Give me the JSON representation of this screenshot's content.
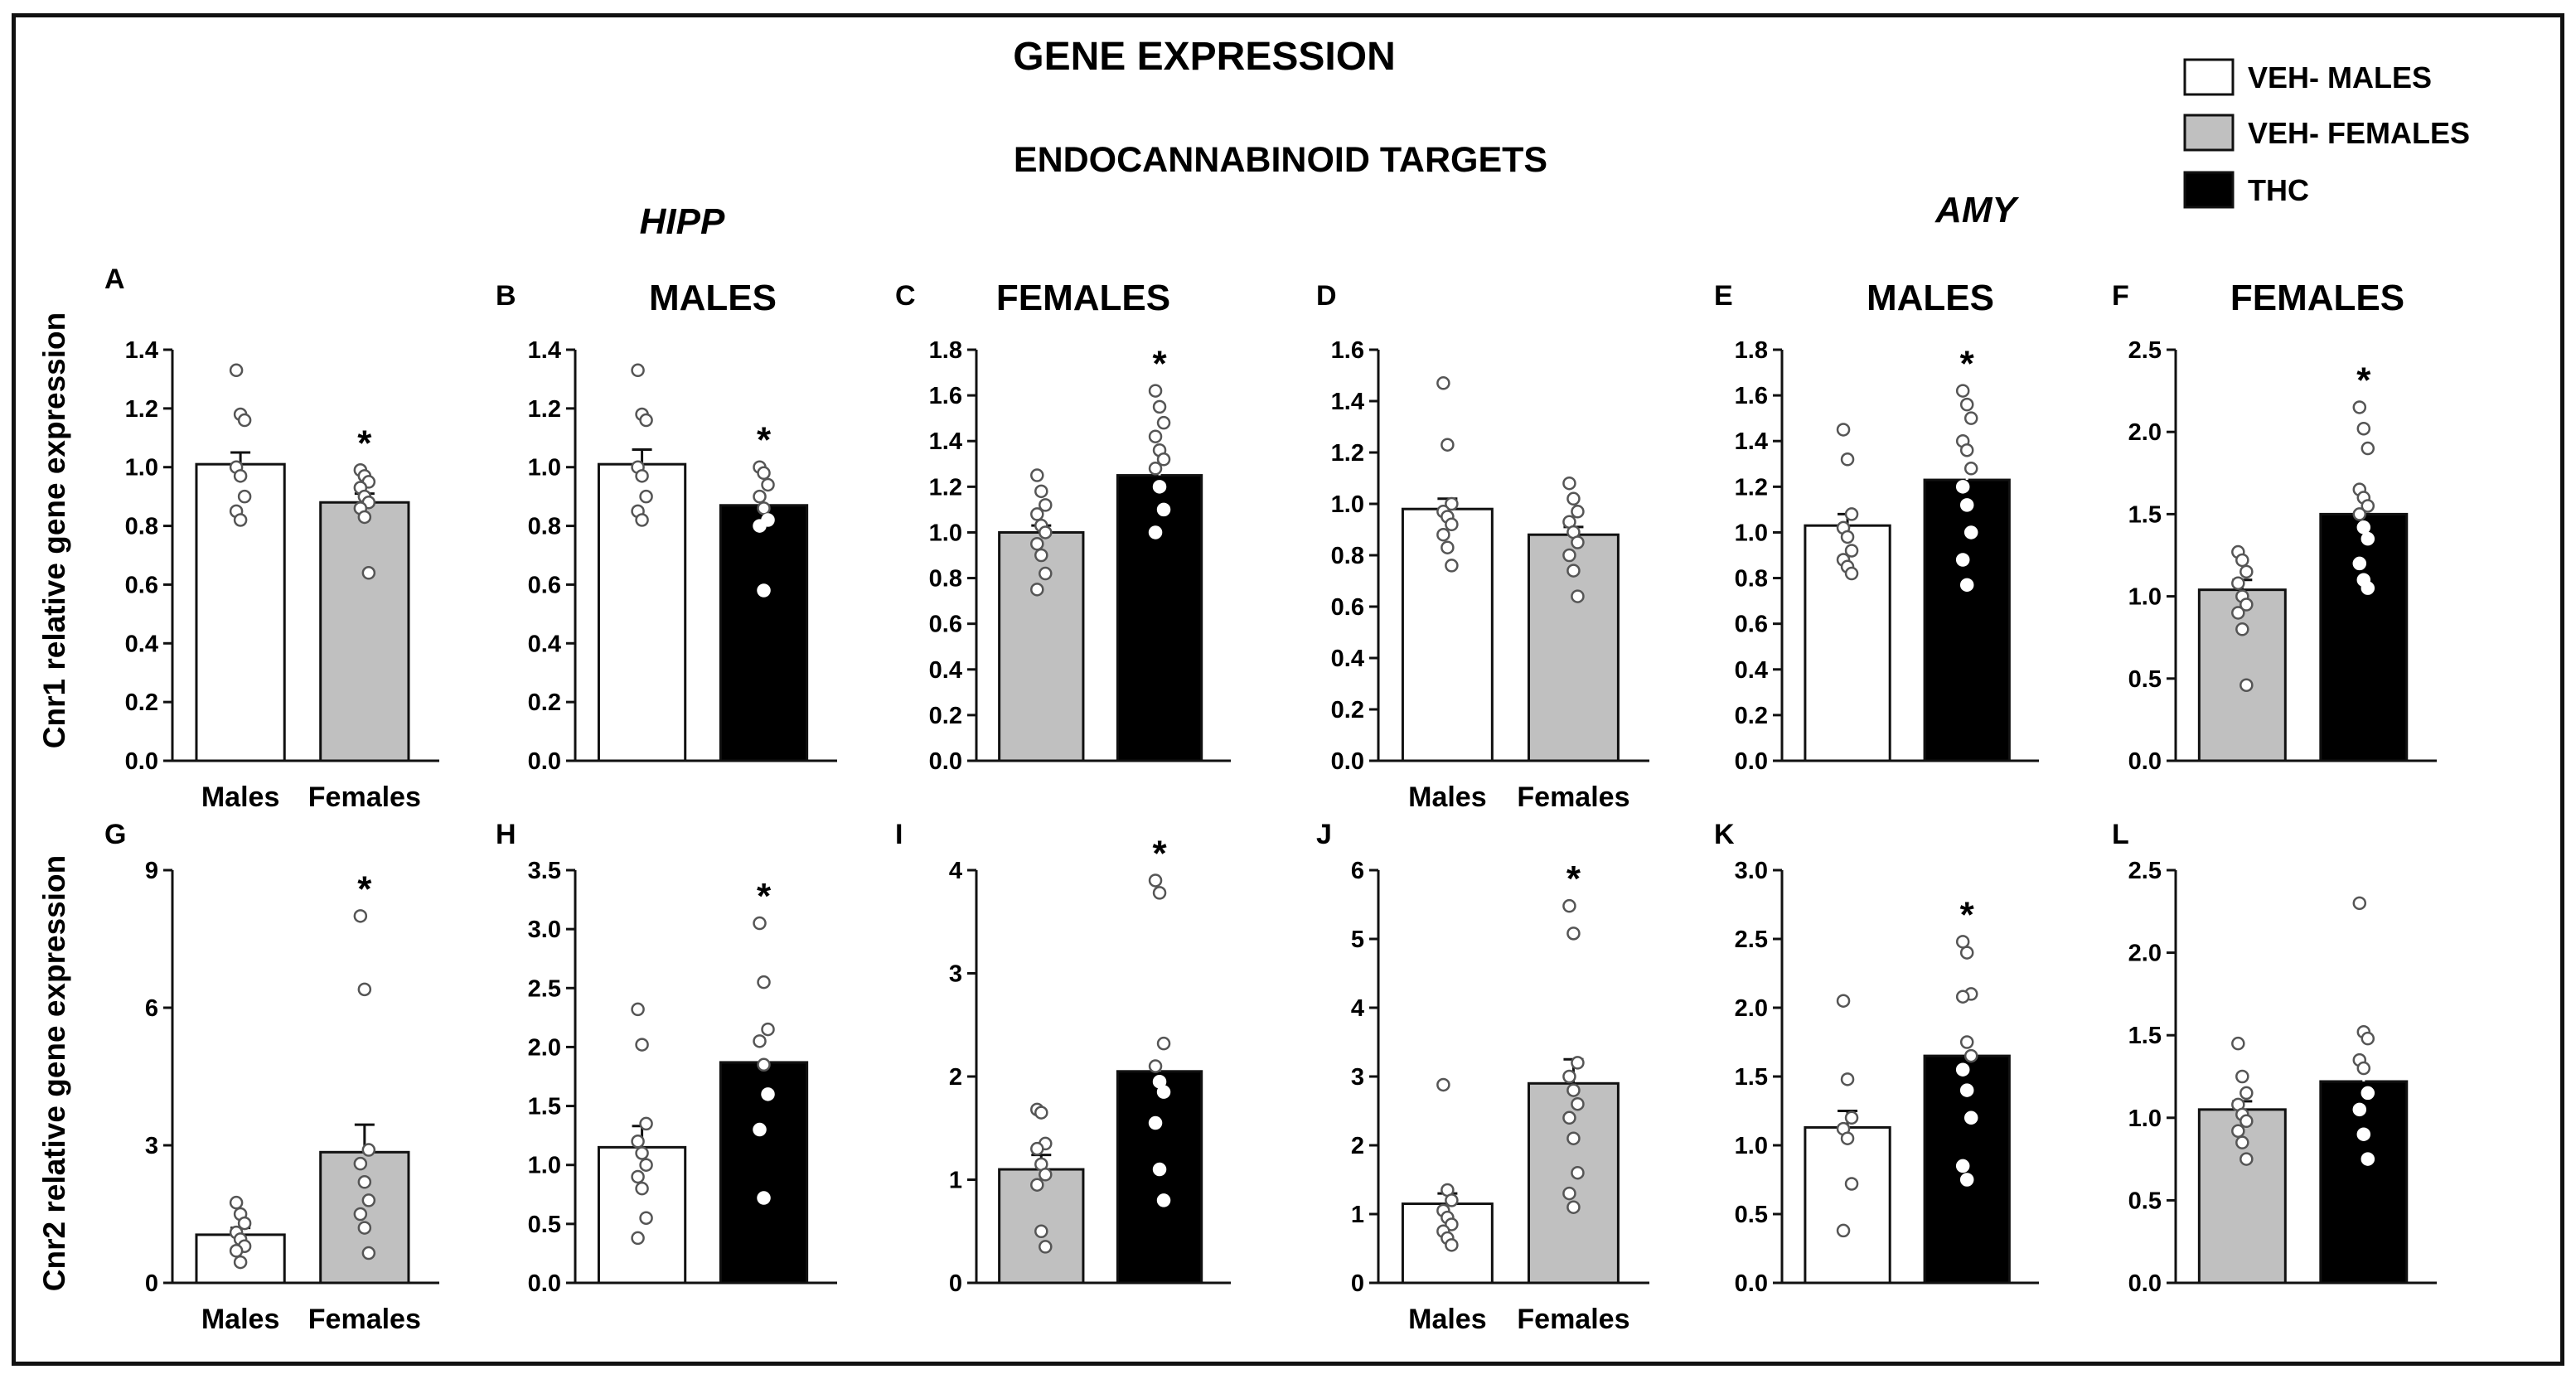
{
  "header": {
    "title": "GENE EXPRESSION",
    "subtitle": "ENDOCANNABINOID TARGETS",
    "region_hipp": "HIPP",
    "region_amy": "AMY"
  },
  "legend": [
    {
      "label": "VEH- MALES",
      "color": "#ffffff"
    },
    {
      "label": "VEH- FEMALES",
      "color": "#c0c0c0"
    },
    {
      "label": "THC",
      "color": "#000000"
    }
  ],
  "row_labels": [
    "Cnr1 relative gene expression",
    "Cnr2 relative gene expression"
  ],
  "colors": {
    "veh_males": "#ffffff",
    "veh_females": "#c0c0c0",
    "thc": "#000000",
    "ink": "#111111"
  },
  "chart_data": [
    {
      "panel": "A",
      "type": "bar",
      "region": "HIPP",
      "gene": "Cnr1",
      "header": "",
      "categories": [
        "Males",
        "Females"
      ],
      "series": [
        {
          "name": "VEH- MALES",
          "value": 1.01,
          "sem": 0.04,
          "points": [
            1.33,
            1.18,
            1.16,
            1.0,
            0.97,
            0.9,
            0.85,
            0.82
          ],
          "star": false
        },
        {
          "name": "VEH- FEMALES",
          "value": 0.88,
          "sem": 0.03,
          "points": [
            0.99,
            0.97,
            0.95,
            0.93,
            0.9,
            0.88,
            0.86,
            0.83,
            0.64
          ],
          "star": true
        }
      ],
      "ylim": [
        0,
        1.4
      ],
      "yticks": [
        "0.0",
        "0.2",
        "0.4",
        "0.6",
        "0.8",
        "1.0",
        "1.2",
        "1.4"
      ]
    },
    {
      "panel": "B",
      "type": "bar",
      "region": "HIPP",
      "gene": "Cnr1",
      "header": "MALES",
      "categories": [],
      "series": [
        {
          "name": "VEH- MALES",
          "value": 1.01,
          "sem": 0.05,
          "points": [
            1.33,
            1.18,
            1.16,
            1.0,
            0.97,
            0.9,
            0.85,
            0.82
          ],
          "star": false
        },
        {
          "name": "THC",
          "value": 0.87,
          "sem": 0.04,
          "points": [
            1.0,
            0.98,
            0.94,
            0.9,
            0.86,
            0.82,
            0.8,
            0.58
          ],
          "star": true
        }
      ],
      "ylim": [
        0,
        1.4
      ],
      "yticks": [
        "0.0",
        "0.2",
        "0.4",
        "0.6",
        "0.8",
        "1.0",
        "1.2",
        "1.4"
      ]
    },
    {
      "panel": "C",
      "type": "bar",
      "region": "HIPP",
      "gene": "Cnr1",
      "header": "FEMALES",
      "categories": [],
      "series": [
        {
          "name": "VEH- FEMALES",
          "value": 1.0,
          "sem": 0.03,
          "points": [
            1.25,
            1.18,
            1.12,
            1.08,
            1.03,
            1.0,
            0.95,
            0.9,
            0.82,
            0.75
          ],
          "star": false
        },
        {
          "name": "THC",
          "value": 1.25,
          "sem": 0.05,
          "points": [
            1.62,
            1.55,
            1.48,
            1.42,
            1.36,
            1.32,
            1.28,
            1.2,
            1.1,
            1.0
          ],
          "star": true
        }
      ],
      "ylim": [
        0,
        1.8
      ],
      "yticks": [
        "0.0",
        "0.2",
        "0.4",
        "0.6",
        "0.8",
        "1.0",
        "1.2",
        "1.4",
        "1.6",
        "1.8"
      ]
    },
    {
      "panel": "D",
      "type": "bar",
      "region": "AMY",
      "gene": "Cnr1",
      "header": "",
      "categories": [
        "Males",
        "Females"
      ],
      "series": [
        {
          "name": "VEH- MALES",
          "value": 0.98,
          "sem": 0.04,
          "points": [
            1.47,
            1.23,
            1.0,
            0.97,
            0.95,
            0.92,
            0.88,
            0.83,
            0.76
          ],
          "star": false
        },
        {
          "name": "VEH- FEMALES",
          "value": 0.88,
          "sem": 0.03,
          "points": [
            1.08,
            1.02,
            0.97,
            0.93,
            0.89,
            0.85,
            0.8,
            0.74,
            0.64
          ],
          "star": false
        }
      ],
      "ylim": [
        0,
        1.6
      ],
      "yticks": [
        "0.0",
        "0.2",
        "0.4",
        "0.6",
        "0.8",
        "1.0",
        "1.2",
        "1.4",
        "1.6"
      ]
    },
    {
      "panel": "E",
      "type": "bar",
      "region": "AMY",
      "gene": "Cnr1",
      "header": "MALES",
      "categories": [],
      "series": [
        {
          "name": "VEH- MALES",
          "value": 1.03,
          "sem": 0.05,
          "points": [
            1.45,
            1.32,
            1.08,
            1.02,
            0.98,
            0.92,
            0.88,
            0.85,
            0.82
          ],
          "star": false
        },
        {
          "name": "THC",
          "value": 1.23,
          "sem": 0.06,
          "points": [
            1.62,
            1.56,
            1.5,
            1.4,
            1.36,
            1.28,
            1.2,
            1.12,
            1.0,
            0.88,
            0.77
          ],
          "star": true
        }
      ],
      "ylim": [
        0,
        1.8
      ],
      "yticks": [
        "0.0",
        "0.2",
        "0.4",
        "0.6",
        "0.8",
        "1.0",
        "1.2",
        "1.4",
        "1.6",
        "1.8"
      ]
    },
    {
      "panel": "F",
      "type": "bar",
      "region": "AMY",
      "gene": "Cnr1",
      "header": "FEMALES",
      "categories": [],
      "series": [
        {
          "name": "VEH- FEMALES",
          "value": 1.04,
          "sem": 0.06,
          "points": [
            1.27,
            1.22,
            1.15,
            1.08,
            1.0,
            0.95,
            0.9,
            0.8,
            0.46
          ],
          "star": false
        },
        {
          "name": "THC",
          "value": 1.5,
          "sem": 0.07,
          "points": [
            2.15,
            2.02,
            1.9,
            1.65,
            1.6,
            1.55,
            1.5,
            1.42,
            1.35,
            1.2,
            1.1,
            1.05
          ],
          "star": true
        }
      ],
      "ylim": [
        0,
        2.5
      ],
      "yticks": [
        "0.0",
        "0.5",
        "1.0",
        "1.5",
        "2.0",
        "2.5"
      ]
    },
    {
      "panel": "G",
      "type": "bar",
      "region": "HIPP",
      "gene": "Cnr2",
      "header": "",
      "categories": [
        "Males",
        "Females"
      ],
      "series": [
        {
          "name": "VEH- MALES",
          "value": 1.05,
          "sem": 0.15,
          "points": [
            1.75,
            1.5,
            1.3,
            1.1,
            0.95,
            0.8,
            0.7,
            0.45
          ],
          "star": false
        },
        {
          "name": "VEH- FEMALES",
          "value": 2.85,
          "sem": 0.6,
          "points": [
            8.0,
            6.4,
            2.9,
            2.6,
            2.2,
            1.8,
            1.5,
            1.2,
            0.65
          ],
          "star": true
        }
      ],
      "ylim": [
        0,
        9
      ],
      "yticks": [
        "0",
        "3",
        "6",
        "9"
      ]
    },
    {
      "panel": "H",
      "type": "bar",
      "region": "HIPP",
      "gene": "Cnr2",
      "header": "",
      "categories": [],
      "series": [
        {
          "name": "VEH- MALES",
          "value": 1.15,
          "sem": 0.18,
          "points": [
            2.32,
            2.02,
            1.35,
            1.2,
            1.1,
            1.0,
            0.9,
            0.8,
            0.55,
            0.38
          ],
          "star": false
        },
        {
          "name": "THC",
          "value": 1.87,
          "sem": 0.2,
          "points": [
            3.05,
            2.55,
            2.15,
            2.05,
            1.85,
            1.6,
            1.3,
            0.72
          ],
          "star": true
        }
      ],
      "ylim": [
        0,
        3.5
      ],
      "yticks": [
        "0.0",
        "0.5",
        "1.0",
        "1.5",
        "2.0",
        "2.5",
        "3.0",
        "3.5"
      ]
    },
    {
      "panel": "I",
      "type": "bar",
      "region": "HIPP",
      "gene": "Cnr2",
      "header": "",
      "categories": [],
      "series": [
        {
          "name": "VEH- FEMALES",
          "value": 1.1,
          "sem": 0.14,
          "points": [
            1.68,
            1.65,
            1.35,
            1.3,
            1.15,
            1.05,
            0.95,
            0.5,
            0.35
          ],
          "star": false
        },
        {
          "name": "THC",
          "value": 2.05,
          "sem": 0.28,
          "points": [
            3.9,
            3.78,
            2.32,
            2.1,
            1.95,
            1.85,
            1.55,
            1.1,
            0.8
          ],
          "star": true
        }
      ],
      "ylim": [
        0,
        4
      ],
      "yticks": [
        "0",
        "1",
        "2",
        "3",
        "4"
      ]
    },
    {
      "panel": "J",
      "type": "bar",
      "region": "AMY",
      "gene": "Cnr2",
      "header": "",
      "categories": [
        "Males",
        "Females"
      ],
      "series": [
        {
          "name": "VEH- MALES",
          "value": 1.15,
          "sem": 0.15,
          "points": [
            2.88,
            1.35,
            1.2,
            1.05,
            0.95,
            0.85,
            0.75,
            0.65,
            0.55
          ],
          "star": false
        },
        {
          "name": "VEH- FEMALES",
          "value": 2.9,
          "sem": 0.35,
          "points": [
            5.48,
            5.08,
            3.2,
            3.0,
            2.8,
            2.6,
            2.4,
            2.1,
            1.6,
            1.3,
            1.1
          ],
          "star": true
        }
      ],
      "ylim": [
        0,
        6
      ],
      "yticks": [
        "0",
        "1",
        "2",
        "3",
        "4",
        "5",
        "6"
      ]
    },
    {
      "panel": "K",
      "type": "bar",
      "region": "AMY",
      "gene": "Cnr2",
      "header": "",
      "categories": [],
      "series": [
        {
          "name": "VEH- MALES",
          "value": 1.13,
          "sem": 0.12,
          "points": [
            2.05,
            1.48,
            1.2,
            1.12,
            1.05,
            0.72,
            0.38
          ],
          "star": false
        },
        {
          "name": "THC",
          "value": 1.65,
          "sem": 0.15,
          "points": [
            2.48,
            2.4,
            2.1,
            2.08,
            1.75,
            1.65,
            1.55,
            1.4,
            1.2,
            0.85,
            0.75
          ],
          "star": true
        }
      ],
      "ylim": [
        0,
        3.0
      ],
      "yticks": [
        "0.0",
        "0.5",
        "1.0",
        "1.5",
        "2.0",
        "2.5",
        "3.0"
      ]
    },
    {
      "panel": "L",
      "type": "bar",
      "region": "AMY",
      "gene": "Cnr2",
      "header": "",
      "categories": [],
      "series": [
        {
          "name": "VEH- FEMALES",
          "value": 1.05,
          "sem": 0.05,
          "points": [
            1.45,
            1.25,
            1.15,
            1.08,
            1.02,
            0.98,
            0.92,
            0.85,
            0.75
          ],
          "star": false
        },
        {
          "name": "THC",
          "value": 1.22,
          "sem": 0.12,
          "points": [
            2.3,
            1.52,
            1.48,
            1.35,
            1.3,
            1.15,
            1.05,
            0.9,
            0.75
          ],
          "star": false
        }
      ],
      "ylim": [
        0,
        2.5
      ],
      "yticks": [
        "0.0",
        "0.5",
        "1.0",
        "1.5",
        "2.0",
        "2.5"
      ]
    }
  ]
}
